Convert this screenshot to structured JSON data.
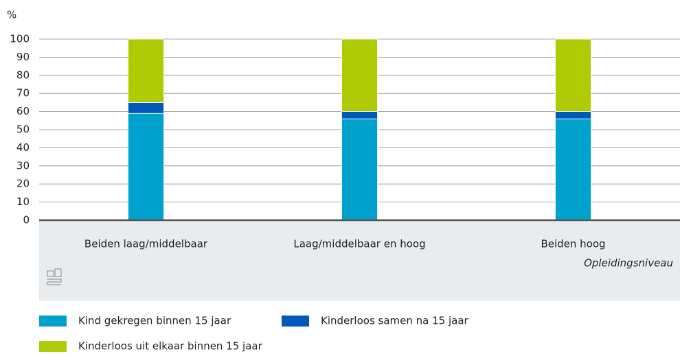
{
  "chart_data": {
    "type": "bar",
    "stacked": true,
    "y_axis_label": "%",
    "x_axis_label": "Opleidingsniveau",
    "categories": [
      "Beiden laag/middelbaar",
      "Laag/middelbaar en hoog",
      "Beiden hoog"
    ],
    "series": [
      {
        "name": "Kind gekregen binnen 15 jaar",
        "color": "#00a1cd",
        "values": [
          59,
          56,
          56
        ]
      },
      {
        "name": "Kinderloos samen na 15 jaar",
        "color": "#0058b8",
        "values": [
          6,
          4,
          4
        ]
      },
      {
        "name": "Kinderloos uit elkaar binnen 15 jaar",
        "color": "#afcb05",
        "values": [
          35,
          40,
          40
        ]
      }
    ],
    "ylim": [
      0,
      100
    ],
    "yticks": [
      0,
      10,
      20,
      30,
      40,
      50,
      60,
      70,
      80,
      90,
      100
    ],
    "grid": true
  }
}
